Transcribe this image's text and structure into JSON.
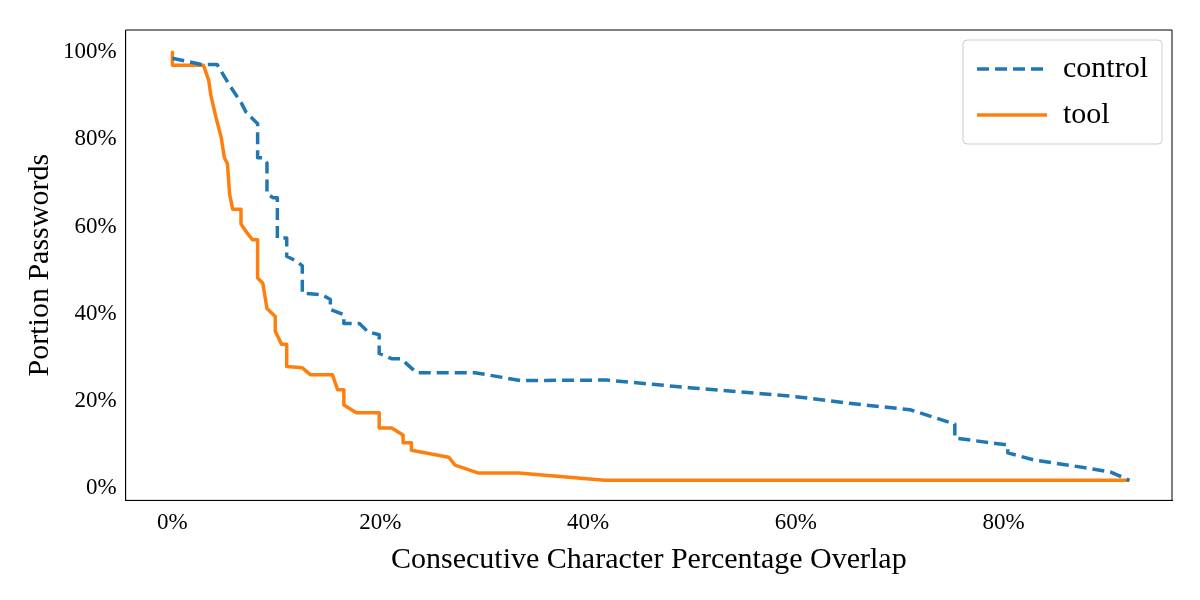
{
  "chart_data": {
    "type": "line",
    "xlabel": "Consecutive Character Percentage Overlap",
    "ylabel": "Portion Passwords",
    "xlim": [
      -4.5,
      96.2
    ],
    "ylim": [
      -2.8,
      105.1
    ],
    "xticks": [
      {
        "value": 0,
        "label": "0%"
      },
      {
        "value": 20,
        "label": "20%"
      },
      {
        "value": 40,
        "label": "40%"
      },
      {
        "value": 60,
        "label": "60%"
      },
      {
        "value": 80,
        "label": "80%"
      }
    ],
    "yticks": [
      {
        "value": 0,
        "label": "0%"
      },
      {
        "value": 20,
        "label": "20%"
      },
      {
        "value": 40,
        "label": "40%"
      },
      {
        "value": 60,
        "label": "60%"
      },
      {
        "value": 80,
        "label": "80%"
      },
      {
        "value": 100,
        "label": "100%"
      }
    ],
    "grid": false,
    "legend": "top right",
    "marker": "none",
    "series": [
      {
        "name": "control",
        "color": "#1f77b4",
        "line_style": "dashed",
        "x": [
          0,
          2.8,
          4.3,
          5.5,
          6.6,
          7.1,
          8.2,
          8.2,
          8.7,
          9.1,
          9.1,
          9.7,
          10.1,
          10.1,
          11,
          11,
          12,
          12.5,
          12.5,
          14.4,
          15.2,
          15.2,
          16.5,
          16.5,
          18,
          18.8,
          19.9,
          19.9,
          21.1,
          22,
          23.5,
          29.1,
          33.5,
          41.8,
          50,
          60,
          65,
          71,
          75.3,
          75.3,
          80.4,
          80.4,
          82.9,
          87,
          90.3,
          92.1
        ],
        "values": [
          98.6,
          97.2,
          97.2,
          92.4,
          88.5,
          86.2,
          83.6,
          75.8,
          75.8,
          74.6,
          67.5,
          66.6,
          66.6,
          57.4,
          57.4,
          53.2,
          52,
          51,
          44.7,
          44.4,
          43.3,
          41,
          39.8,
          37.8,
          37.8,
          35.9,
          35.2,
          30.9,
          29.7,
          29.7,
          26.5,
          26.5,
          24.7,
          24.8,
          23,
          21,
          19.5,
          18,
          14.7,
          11.5,
          9.9,
          8.1,
          6.5,
          5,
          3.7,
          1.8
        ]
      },
      {
        "name": "tool",
        "color": "#ff7f0e",
        "line_style": "solid",
        "x": [
          0,
          0,
          3,
          3.5,
          3.7,
          4.2,
          4.7,
          5,
          5.3,
          5.5,
          5.8,
          6.6,
          6.6,
          7.2,
          7.7,
          8.2,
          8.2,
          8.7,
          9.1,
          9.9,
          9.9,
          10.5,
          11,
          11,
          12.5,
          13.3,
          15.4,
          15.9,
          16.5,
          16.5,
          17.7,
          19.9,
          19.9,
          21.1,
          22.2,
          22.2,
          23,
          23,
          26.6,
          27.2,
          29.4,
          33.3,
          41.6,
          92.1
        ],
        "values": [
          100,
          97,
          97,
          93.5,
          90.1,
          85,
          80.4,
          75.8,
          74.4,
          67.5,
          64,
          64,
          60.6,
          58.5,
          57,
          57,
          48.2,
          47,
          41.2,
          39.4,
          36,
          33,
          33,
          27.9,
          27.6,
          26,
          26,
          22.6,
          22.6,
          19.1,
          17.3,
          17.3,
          13.8,
          13.8,
          12.2,
          10.4,
          10.4,
          8.7,
          7.1,
          5.3,
          3.5,
          3.5,
          1.8,
          1.8
        ]
      }
    ]
  }
}
